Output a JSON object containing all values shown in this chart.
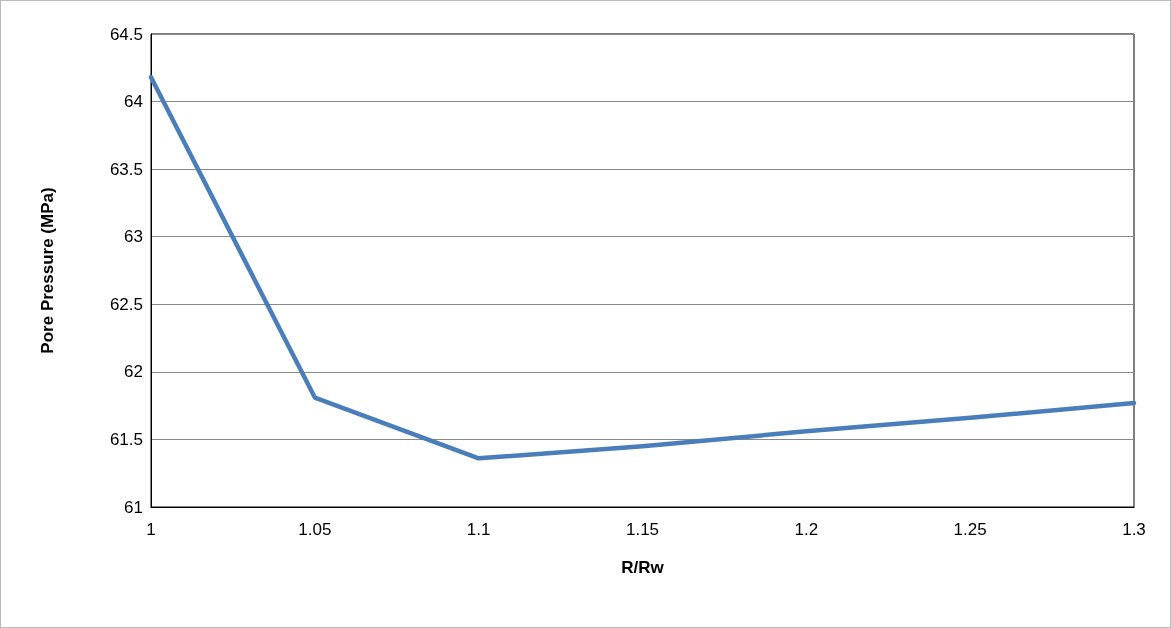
{
  "chart_data": {
    "type": "line",
    "xlabel": "R/Rw",
    "ylabel": "Pore Pressure (MPa)",
    "x": [
      1,
      1.05,
      1.1,
      1.15,
      1.2,
      1.25,
      1.3
    ],
    "series": [
      {
        "color": "#4a7ebb",
        "values": [
          64.18,
          61.81,
          61.36,
          61.45,
          61.56,
          61.66,
          61.77
        ]
      }
    ],
    "xlim": [
      1,
      1.3
    ],
    "xticks": [
      1,
      1.05,
      1.1,
      1.15,
      1.2,
      1.25,
      1.3
    ],
    "ylim": [
      61,
      64.5
    ],
    "yticks": [
      61,
      61.5,
      62,
      62.5,
      63,
      63.5,
      64,
      64.5
    ],
    "grid": "y",
    "marker": "none",
    "line_style": "solid"
  }
}
